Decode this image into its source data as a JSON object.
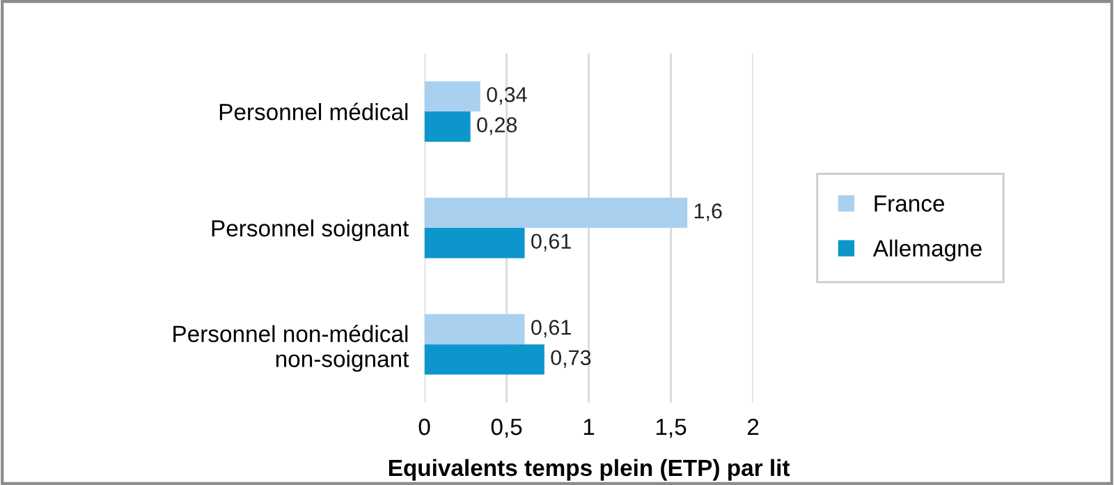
{
  "chart_data": {
    "type": "bar",
    "orientation": "horizontal",
    "xlabel": "Equivalents temps plein (ETP) par lit",
    "categories": [
      "Personnel médical",
      "Personnel soignant",
      "Personnel non-médical\nnon-soignant"
    ],
    "series": [
      {
        "name": "France",
        "color": "#a9d0ef",
        "values": [
          0.34,
          1.6,
          0.61
        ],
        "value_labels": [
          "0,34",
          "1,6",
          "0,61"
        ]
      },
      {
        "name": "Allemagne",
        "color": "#0c96cc",
        "values": [
          0.28,
          0.61,
          0.73
        ],
        "value_labels": [
          "0,28",
          "0,61",
          "0,73"
        ]
      }
    ],
    "xlim": [
      0,
      2
    ],
    "xticks": [
      0,
      {
        "value": 0.5,
        "label": "0,5"
      },
      1,
      {
        "value": 1.5,
        "label": "1,5"
      },
      2
    ],
    "grid": "x",
    "legend": "right"
  }
}
